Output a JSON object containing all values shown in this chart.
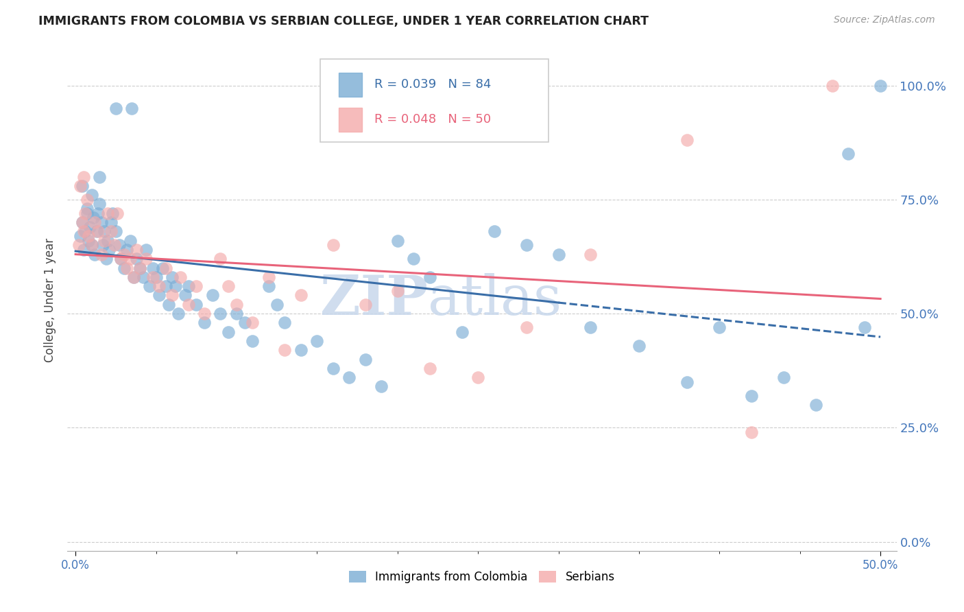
{
  "title": "IMMIGRANTS FROM COLOMBIA VS SERBIAN COLLEGE, UNDER 1 YEAR CORRELATION CHART",
  "source": "Source: ZipAtlas.com",
  "ylabel": "College, Under 1 year",
  "x_tick_labels_major": [
    "0.0%",
    "50.0%"
  ],
  "x_tick_values_major": [
    0.0,
    0.5
  ],
  "x_tick_values_minor": [
    0.05,
    0.1,
    0.15,
    0.2,
    0.25,
    0.3,
    0.35,
    0.4,
    0.45
  ],
  "y_tick_labels": [
    "0.0%",
    "25.0%",
    "50.0%",
    "75.0%",
    "100.0%"
  ],
  "y_tick_values": [
    0.0,
    0.25,
    0.5,
    0.75,
    1.0
  ],
  "xlim": [
    -0.005,
    0.51
  ],
  "ylim": [
    -0.02,
    1.08
  ],
  "colombia_R": 0.039,
  "colombia_N": 84,
  "serbian_R": 0.048,
  "serbian_N": 50,
  "colombia_color": "#7BADD4",
  "serbian_color": "#F4AAAA",
  "colombia_trendline_color": "#3A6EA8",
  "serbian_trendline_color": "#E8637A",
  "colombia_x": [
    0.003,
    0.004,
    0.005,
    0.006,
    0.007,
    0.008,
    0.009,
    0.01,
    0.011,
    0.012,
    0.013,
    0.014,
    0.015,
    0.016,
    0.017,
    0.018,
    0.019,
    0.02,
    0.021,
    0.022,
    0.023,
    0.025,
    0.027,
    0.028,
    0.03,
    0.032,
    0.034,
    0.036,
    0.038,
    0.04,
    0.042,
    0.044,
    0.046,
    0.048,
    0.05,
    0.052,
    0.054,
    0.056,
    0.058,
    0.06,
    0.062,
    0.064,
    0.068,
    0.07,
    0.075,
    0.08,
    0.085,
    0.09,
    0.095,
    0.1,
    0.105,
    0.11,
    0.12,
    0.125,
    0.13,
    0.14,
    0.15,
    0.16,
    0.17,
    0.18,
    0.19,
    0.2,
    0.21,
    0.22,
    0.24,
    0.26,
    0.28,
    0.3,
    0.32,
    0.35,
    0.38,
    0.4,
    0.42,
    0.44,
    0.46,
    0.48,
    0.49,
    0.5,
    0.004,
    0.007,
    0.01,
    0.015,
    0.025,
    0.035
  ],
  "colombia_y": [
    0.67,
    0.7,
    0.64,
    0.68,
    0.72,
    0.66,
    0.69,
    0.65,
    0.71,
    0.63,
    0.68,
    0.72,
    0.74,
    0.7,
    0.65,
    0.68,
    0.62,
    0.66,
    0.64,
    0.7,
    0.72,
    0.68,
    0.65,
    0.62,
    0.6,
    0.64,
    0.66,
    0.58,
    0.62,
    0.6,
    0.58,
    0.64,
    0.56,
    0.6,
    0.58,
    0.54,
    0.6,
    0.56,
    0.52,
    0.58,
    0.56,
    0.5,
    0.54,
    0.56,
    0.52,
    0.48,
    0.54,
    0.5,
    0.46,
    0.5,
    0.48,
    0.44,
    0.56,
    0.52,
    0.48,
    0.42,
    0.44,
    0.38,
    0.36,
    0.4,
    0.34,
    0.66,
    0.62,
    0.58,
    0.46,
    0.68,
    0.65,
    0.63,
    0.47,
    0.43,
    0.35,
    0.47,
    0.32,
    0.36,
    0.3,
    0.85,
    0.47,
    1.0,
    0.78,
    0.73,
    0.76,
    0.8,
    0.95,
    0.95
  ],
  "serbian_x": [
    0.002,
    0.004,
    0.005,
    0.006,
    0.007,
    0.008,
    0.01,
    0.012,
    0.014,
    0.016,
    0.018,
    0.02,
    0.022,
    0.024,
    0.026,
    0.028,
    0.03,
    0.032,
    0.034,
    0.036,
    0.038,
    0.04,
    0.044,
    0.048,
    0.052,
    0.056,
    0.06,
    0.065,
    0.07,
    0.075,
    0.08,
    0.09,
    0.095,
    0.1,
    0.11,
    0.12,
    0.13,
    0.14,
    0.16,
    0.18,
    0.2,
    0.22,
    0.25,
    0.28,
    0.32,
    0.38,
    0.42,
    0.47,
    0.003,
    0.005
  ],
  "serbian_y": [
    0.65,
    0.7,
    0.68,
    0.72,
    0.75,
    0.67,
    0.65,
    0.7,
    0.68,
    0.63,
    0.66,
    0.72,
    0.68,
    0.65,
    0.72,
    0.62,
    0.63,
    0.6,
    0.62,
    0.58,
    0.64,
    0.6,
    0.62,
    0.58,
    0.56,
    0.6,
    0.54,
    0.58,
    0.52,
    0.56,
    0.5,
    0.62,
    0.56,
    0.52,
    0.48,
    0.58,
    0.42,
    0.54,
    0.65,
    0.52,
    0.55,
    0.38,
    0.36,
    0.47,
    0.63,
    0.88,
    0.24,
    1.0,
    0.78,
    0.8
  ],
  "watermark_zip": "ZIP",
  "watermark_atlas": "atlas",
  "background_color": "#FFFFFF",
  "grid_color": "#CCCCCC"
}
